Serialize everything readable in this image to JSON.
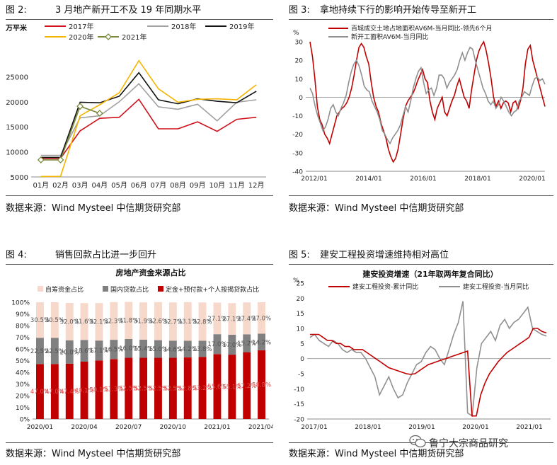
{
  "panels": [
    {
      "num": "图 2:",
      "title": "3 月地产新开工不及 19 年同期水平",
      "source": "数据来源：Wind Mysteel  中信期货研究部"
    },
    {
      "num": "图 3:",
      "title": "拿地持续下行的影响开始传导至新开工",
      "source": "数据来源：Wind Mysteel  中信期货研究部"
    },
    {
      "num": "图 4:",
      "title": "销售回款占比进一步回升",
      "source": "数据来源：Wind Mysteel  中信期货研究部"
    },
    {
      "num": "图 5:",
      "title": "建安工程投资增速维持相对高位",
      "source": "数据来源：Wind Mysteel  中信期货研究部"
    }
  ],
  "watermark": "鲁宁大宗商品研究",
  "chart_data": [
    {
      "type": "line",
      "ylabel": "万平米",
      "categories": [
        "01月",
        "02月",
        "03月",
        "04月",
        "05月",
        "06月",
        "07月",
        "08月",
        "09月",
        "10月",
        "11月",
        "12月"
      ],
      "ylim": [
        5000,
        30000
      ],
      "yticks": [
        5000,
        10000,
        15000,
        20000,
        25000
      ],
      "series": [
        {
          "name": "2017年",
          "color": "#d0101b",
          "marker": false,
          "values": [
            8700,
            8700,
            14200,
            16700,
            16900,
            20500,
            14600,
            14600,
            16000,
            14100,
            16500,
            16900
          ]
        },
        {
          "name": "2018年",
          "color": "#a0a0a0",
          "marker": false,
          "values": [
            9300,
            9300,
            16800,
            17200,
            20000,
            23600,
            19000,
            18500,
            19500,
            16200,
            19900,
            20400
          ]
        },
        {
          "name": "2019年",
          "color": "#111111",
          "marker": false,
          "values": [
            8900,
            8900,
            19900,
            19800,
            21100,
            25800,
            20400,
            19600,
            20600,
            20100,
            19800,
            22100
          ]
        },
        {
          "name": "2020年",
          "color": "#f5b400",
          "marker": false,
          "values": [
            5100,
            5100,
            17200,
            19400,
            21800,
            28200,
            22600,
            19900,
            20500,
            20600,
            20400,
            23400
          ]
        },
        {
          "name": "2021年",
          "color": "#7a8a3c",
          "marker": true,
          "values": [
            8400,
            8400,
            19100,
            17700,
            null,
            null,
            null,
            null,
            null,
            null,
            null,
            null
          ]
        }
      ]
    },
    {
      "type": "line",
      "ylabel": "%",
      "x_ticks": [
        "2012/01",
        "2014/01",
        "2016/01",
        "2018/01",
        "2020/01"
      ],
      "ylim": [
        -40,
        30
      ],
      "yticks": [
        -40,
        -30,
        -20,
        -10,
        0,
        10,
        20,
        30
      ],
      "series": [
        {
          "name": "百城成交土地占地面积AV6M-当月同比-领先6个月",
          "color": "#c00000",
          "values": [
            30,
            22,
            10,
            -5,
            -12,
            -15,
            -20,
            -22,
            -25,
            -20,
            -15,
            -10,
            -8,
            -6,
            -5,
            -3,
            0,
            5,
            12,
            20,
            27,
            29,
            27,
            22,
            18,
            8,
            0,
            -5,
            -8,
            -14,
            -18,
            -22,
            -28,
            -32,
            -35,
            -33,
            -28,
            -20,
            -12,
            -5,
            -2,
            0,
            2,
            5,
            9,
            12,
            15,
            10,
            8,
            -2,
            -8,
            -12,
            -6,
            -3,
            0,
            -8,
            -10,
            -6,
            -2,
            1,
            6,
            10,
            5,
            0,
            -2,
            -6,
            4,
            12,
            20,
            25,
            28,
            30,
            25,
            18,
            10,
            0,
            -5,
            -2,
            -6,
            -3,
            -2,
            -3,
            -8,
            -3,
            -2,
            -6,
            -2,
            5,
            18,
            26,
            28,
            20,
            15,
            10,
            5,
            0,
            -5
          ]
        },
        {
          "name": "新开工面积AV6M-当月同比",
          "color": "#909090",
          "values": [
            5,
            2,
            -5,
            -10,
            -14,
            -18,
            -16,
            -12,
            -6,
            -4,
            -8,
            -10,
            -6,
            -3,
            1,
            8,
            14,
            18,
            20,
            17,
            12,
            6,
            4,
            3,
            -2,
            -5,
            -8,
            -12,
            -18,
            -20,
            -23,
            -25,
            -22,
            -20,
            -18,
            -15,
            -10,
            -5,
            -8,
            -2,
            5,
            10,
            14,
            16,
            8,
            2,
            4,
            5,
            1,
            5,
            12,
            12,
            10,
            5,
            8,
            10,
            12,
            15,
            20,
            24,
            20,
            24,
            27,
            26,
            20,
            15,
            10,
            5,
            2,
            -2,
            -4,
            -2,
            -6,
            -4,
            0,
            -2,
            -5,
            -8,
            -10,
            -8,
            -7,
            -2,
            0,
            3,
            2,
            1,
            6,
            10,
            11,
            9,
            10,
            7
          ]
        }
      ]
    },
    {
      "type": "bar",
      "title": "房地产资金来源占比",
      "categories": [
        "2020/01",
        "",
        "",
        "2020/04",
        "",
        "",
        "2020/07",
        "",
        "",
        "2020/10",
        "",
        "",
        "2021/01",
        "",
        "",
        "2021/04"
      ],
      "x_tick_labels": [
        "2020/01",
        "2020/04",
        "2020/07",
        "2020/10",
        "2021/01",
        "2021/04"
      ],
      "ylim": [
        0,
        100
      ],
      "yticks": [
        "0%",
        "10%",
        "20%",
        "30%",
        "40%",
        "50%",
        "60%",
        "70%",
        "80%",
        "90%",
        "100%"
      ],
      "series": [
        {
          "name": "定金+预付款+个人按揭贷款占比",
          "color": "#c00000",
          "values": [
            47.0,
            47.0,
            47.4,
            49.1,
            50.1,
            51.3,
            52.5,
            52.5,
            52.5,
            52.5,
            52.8,
            53.2,
            55.6,
            55.1,
            57.2,
            58.8
          ],
          "labels": [
            "47.0%",
            "47.0%",
            "47.4%",
            "49.1%",
            "50.1%",
            "51.3%",
            "52.5%",
            "52.5%",
            "52.5%",
            "52.5%",
            "52.8%",
            "53.2%",
            "55.6%",
            "55.1%",
            "57.2%",
            "58.8%"
          ]
        },
        {
          "name": "国内贷款占比",
          "color": "#808080",
          "values": [
            22.5,
            22.5,
            20.0,
            18.6,
            17.1,
            16.5,
            16.0,
            15.4,
            15.0,
            14.6,
            14.2,
            13.8,
            17.0,
            17.0,
            15.2,
            14.2
          ],
          "labels": [
            "22.5%",
            "22.5%",
            "20.0%",
            "18.6%",
            "17.1%",
            "16.5%",
            "16.0%",
            "15.4%",
            "15.0%",
            "14.6%",
            "14.2%",
            "13.8%",
            "17.0%",
            "17.0%",
            "15.2%",
            "14.2%"
          ]
        },
        {
          "name": "自筹资金占比",
          "color": "#f6d9cb",
          "values": [
            30.5,
            30.5,
            32.0,
            31.6,
            32.1,
            32.3,
            31.8,
            31.9,
            32.6,
            32.7,
            33.1,
            32.8,
            27.1,
            27.1,
            27.4,
            27.0
          ],
          "labels": [
            "30.5%",
            "30.5%",
            "32.0%",
            "31.6%",
            "32.1%",
            "32.3%",
            "31.8%",
            "31.9%",
            "32.6%",
            "32.7%",
            "33.1%",
            "32.8%",
            "27.1%",
            "27.1%",
            "27.4%",
            "27.0%"
          ]
        }
      ]
    },
    {
      "type": "line",
      "title": "建安投资增速（21年取两年复合同比）",
      "ylabel": "%",
      "x_ticks": [
        "2017/01",
        "2018/01",
        "2019/01",
        "2020/01",
        "2021/01"
      ],
      "ylim": [
        -20,
        25
      ],
      "yticks": [
        -20,
        -15,
        -10,
        -5,
        0,
        5,
        10,
        15,
        20,
        25
      ],
      "series": [
        {
          "name": "建安工程投资-累计同比",
          "color": "#c00000",
          "values": [
            8,
            8,
            8,
            7,
            6,
            6,
            5,
            5,
            4,
            4,
            3,
            3,
            3,
            2,
            1,
            0,
            -1,
            -2,
            -3,
            -3.5,
            -4,
            -4.5,
            -5,
            -5.2,
            -5,
            -4,
            -3,
            -2,
            -1.5,
            -1,
            -0.5,
            0,
            0.5,
            1,
            1.5,
            2,
            2.5,
            -19,
            -19,
            -12,
            -8,
            -5,
            -3,
            -1,
            0.5,
            2,
            3,
            4,
            5,
            6,
            7,
            10,
            10,
            9,
            8.5
          ]
        },
        {
          "name": "建安工程投资-当月同比",
          "color": "#909090",
          "values": [
            7,
            8,
            6,
            5,
            4,
            6,
            5,
            3,
            2,
            3,
            2,
            2,
            0,
            -3,
            -6,
            -12,
            -9,
            -6,
            -10,
            -13,
            -12,
            -8,
            -5,
            -2,
            -1,
            2,
            4,
            3,
            0,
            -2,
            3,
            8,
            12,
            19,
            -18,
            -19,
            -3,
            5,
            7,
            9,
            6,
            11,
            13,
            10,
            12,
            13,
            15,
            17,
            10,
            9,
            8,
            7.5
          ]
        }
      ]
    }
  ]
}
